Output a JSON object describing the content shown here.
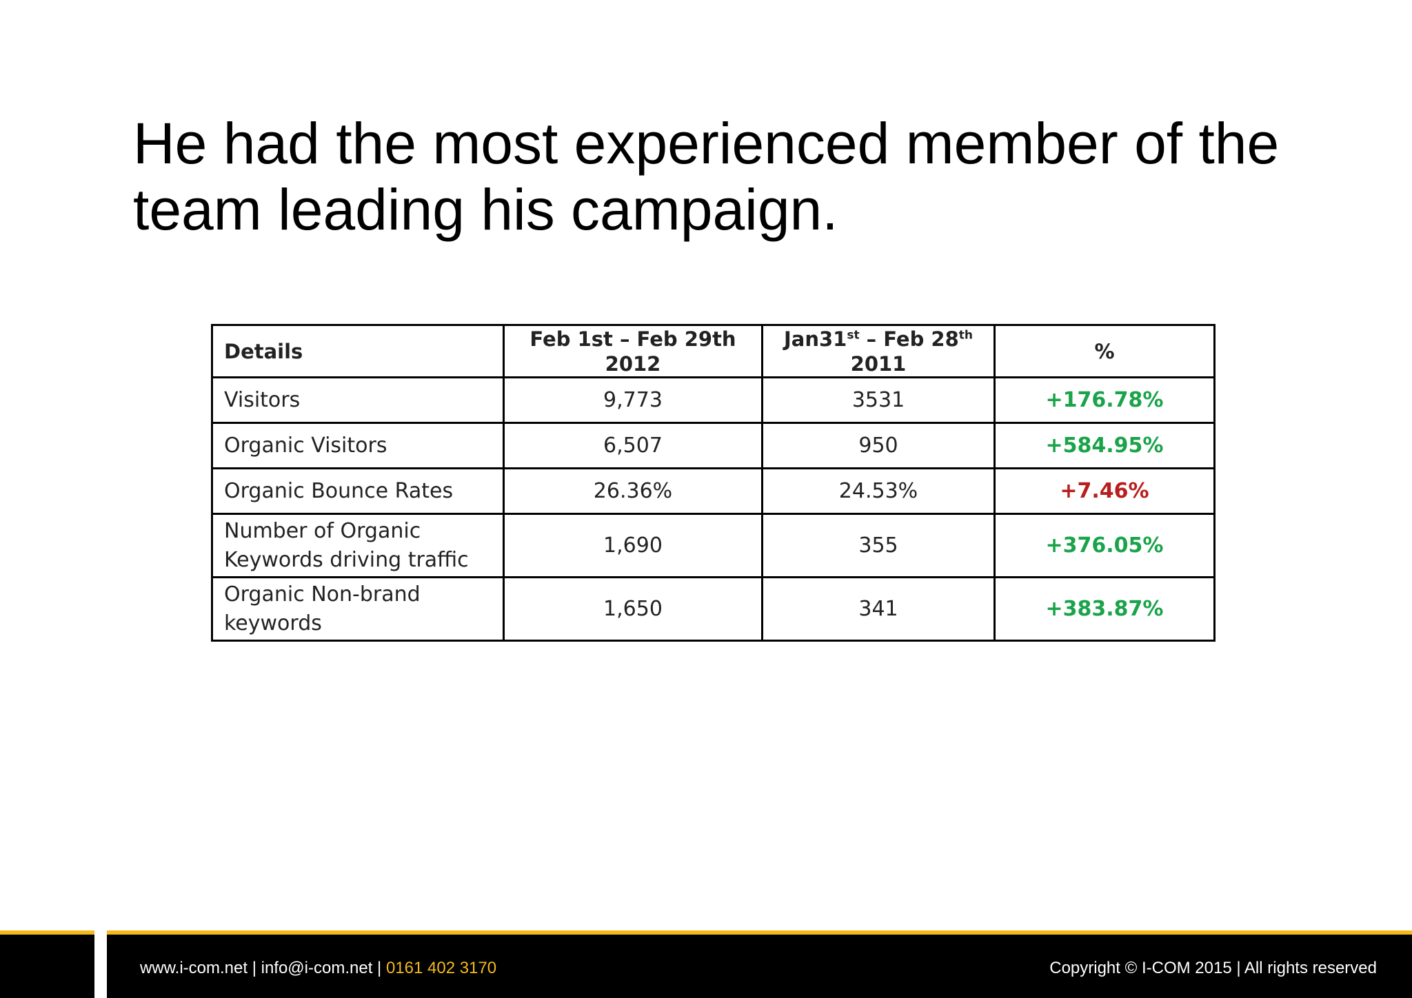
{
  "slide": {
    "title": "He had the most experienced member of the team leading his campaign."
  },
  "table": {
    "header": {
      "details": "Details",
      "period_2012_line1": "Feb 1st – Feb 29th",
      "period_2012_line2": "2012",
      "period_2011_prefix": "Jan31",
      "period_2011_sup1": "st",
      "period_2011_mid": " – Feb 28",
      "period_2011_sup2": "th",
      "period_2011_line2": "2011",
      "percent": "%"
    },
    "rows": [
      {
        "label": "Visitors",
        "v2012": "9,773",
        "v2011": "3531",
        "pct": "+176.78%"
      },
      {
        "label": "Organic Visitors",
        "v2012": "6,507",
        "v2011": "950",
        "pct": "+584.95%"
      },
      {
        "label": "Organic Bounce Rates",
        "v2012": "26.36%",
        "v2011": "24.53%",
        "pct": "+7.46%"
      },
      {
        "label_line1": "Number of Organic",
        "label_line2": "Keywords driving traffic",
        "v2012": "1,690",
        "v2011": "355",
        "pct": "+376.05%"
      },
      {
        "label_line1": "Organic Non-brand",
        "label_line2": "keywords",
        "v2012": "1,650",
        "v2011": "341",
        "pct": "+383.87%"
      }
    ]
  },
  "footer": {
    "contact": "www.i-com.net | info@i-com.net | ",
    "phone": "0161 402 3170",
    "copyright": "Copyright © I-COM 2015 | All rights reserved"
  },
  "colors": {
    "accent_yellow": "#f5b91b",
    "positive_green": "#1aa34a",
    "negative_red": "#b81e1e",
    "footer_black": "#000000"
  }
}
